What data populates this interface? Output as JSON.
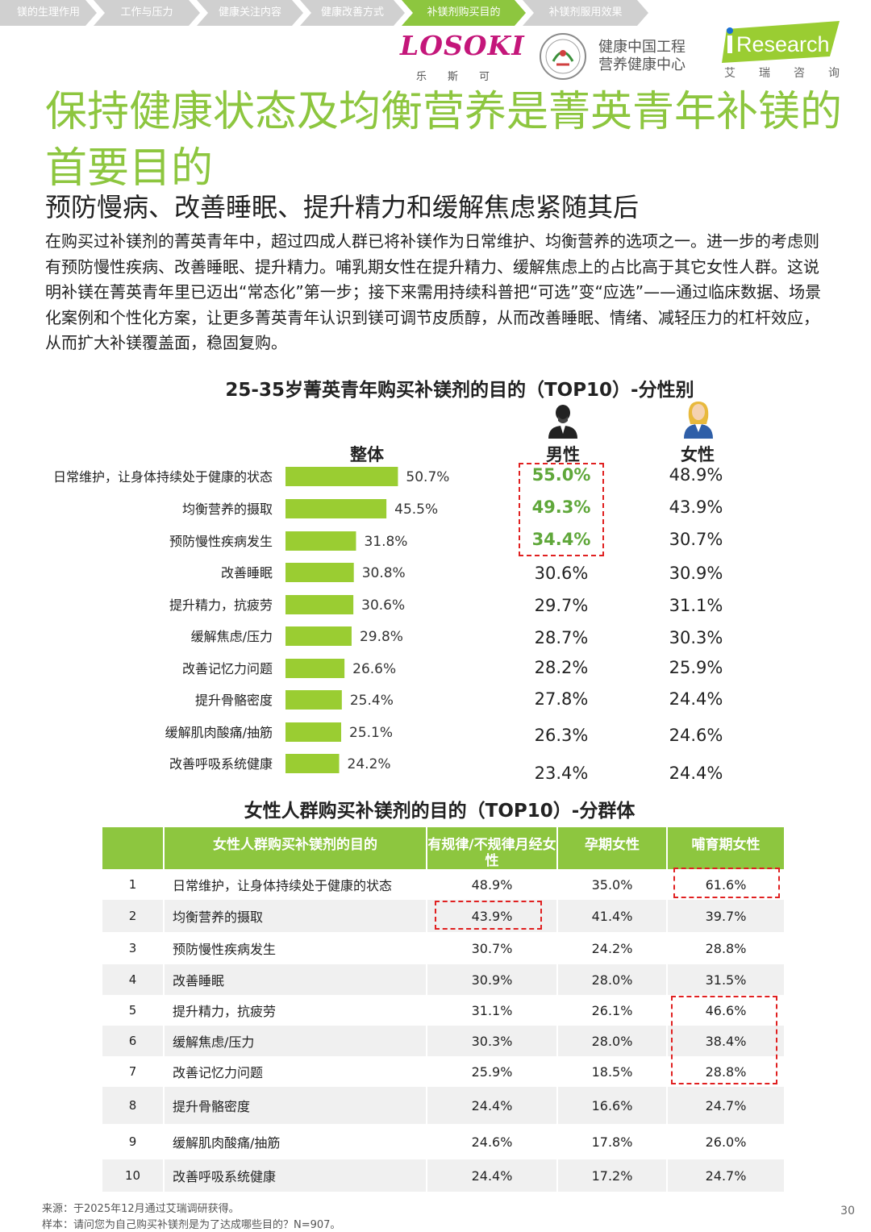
{
  "nav": {
    "items": [
      {
        "label": "镁的生理作用",
        "active": false
      },
      {
        "label": "工作与压力",
        "active": false
      },
      {
        "label": "健康关注内容",
        "active": false
      },
      {
        "label": "健康改善方式",
        "active": false
      },
      {
        "label": "补镁剂购买目的",
        "active": true
      },
      {
        "label": "补镁剂服用效果",
        "active": false
      }
    ]
  },
  "logos": {
    "losoki_word": "LOSOKI",
    "losoki_cn": "乐斯可",
    "org_line1": "健康中国工程",
    "org_line2": "营养健康中心",
    "iresearch_word": "Research",
    "iresearch_cn": "艾瑞咨询"
  },
  "title": "保持健康状态及均衡营养是菁英青年补镁的首要目的",
  "subtitle": "预防慢病、改善睡眠、提升精力和缓解焦虑紧随其后",
  "paragraph": "在购买过补镁剂的菁英青年中，超过四成人群已将补镁作为日常维护、均衡营养的选项之一。进一步的考虑则有预防慢性疾病、改善睡眠、提升精力。哺乳期女性在提升精力、缓解焦虑上的占比高于其它女性人群。这说明补镁在菁英青年里已迈出“常态化”第一步；接下来需用持续科普把“可选”变“应选”——通过临床数据、场景化案例和个性化方案，让更多菁英青年认识到镁可调节皮质醇，从而改善睡眠、情绪、减轻压力的杠杆效应，从而扩大补镁覆盖面，稳固复购。",
  "chart_data": [
    {
      "type": "bar",
      "title": "25-35岁菁英青年购买补镁剂的目的（TOP10）-分性别",
      "categories": [
        "日常维护，让身体持续处于健康的状态",
        "均衡营养的摄取",
        "预防慢性疾病发生",
        "改善睡眠",
        "提升精力，抗疲劳",
        "缓解焦虑/压力",
        "改善记忆力问题",
        "提升骨骼密度",
        "缓解肌肉酸痛/抽筋",
        "改善呼吸系统健康"
      ],
      "series": [
        {
          "name": "整体",
          "values": [
            50.7,
            45.5,
            31.8,
            30.8,
            30.6,
            29.8,
            26.6,
            25.4,
            25.1,
            24.2
          ],
          "color": "#9acd32"
        },
        {
          "name": "男性",
          "values": [
            55.0,
            49.3,
            34.4,
            30.6,
            29.7,
            28.7,
            28.2,
            27.8,
            26.3,
            23.4
          ]
        },
        {
          "name": "女性",
          "values": [
            48.9,
            43.9,
            30.7,
            30.9,
            31.1,
            30.3,
            25.9,
            24.4,
            24.6,
            24.4
          ]
        }
      ],
      "highlight": {
        "series": "男性",
        "rows": [
          0,
          1,
          2
        ],
        "color": "#5fa73a"
      },
      "unit": "%"
    },
    {
      "type": "table",
      "title": "女性人群购买补镁剂的目的（TOP10）-分群体",
      "columns": [
        "",
        "女性人群购买补镁剂的目的",
        "有规律/不规律月经女性",
        "孕期女性",
        "哺育期女性"
      ],
      "rows": [
        [
          "1",
          "日常维护，让身体持续处于健康的状态",
          "48.9%",
          "35.0%",
          "61.6%"
        ],
        [
          "2",
          "均衡营养的摄取",
          "43.9%",
          "41.4%",
          "39.7%"
        ],
        [
          "3",
          "预防慢性疾病发生",
          "30.7%",
          "24.2%",
          "28.8%"
        ],
        [
          "4",
          "改善睡眠",
          "30.9%",
          "28.0%",
          "31.5%"
        ],
        [
          "5",
          "提升精力，抗疲劳",
          "31.1%",
          "26.1%",
          "46.6%"
        ],
        [
          "6",
          "缓解焦虑/压力",
          "30.3%",
          "28.0%",
          "38.4%"
        ],
        [
          "7",
          "改善记忆力问题",
          "25.9%",
          "18.5%",
          "28.8%"
        ],
        [
          "8",
          "提升骨骼密度",
          "24.4%",
          "16.6%",
          "24.7%"
        ],
        [
          "9",
          "缓解肌肉酸痛/抽筋",
          "24.6%",
          "17.8%",
          "26.0%"
        ],
        [
          "10",
          "改善呼吸系统健康",
          "24.4%",
          "17.2%",
          "24.7%"
        ]
      ]
    }
  ],
  "footer": {
    "source": "来源：于2025年12月通过艾瑞调研获得。",
    "sample": "样本：请问您为自己购买补镁剂是为了达成哪些目的？N=907。",
    "page": "30"
  },
  "colors": {
    "accent": "#8dc63f",
    "bar": "#9acd32",
    "highlight_text": "#5fa73a",
    "highlight_box": "#e02020",
    "nav_inactive": "#d0d0d0"
  }
}
